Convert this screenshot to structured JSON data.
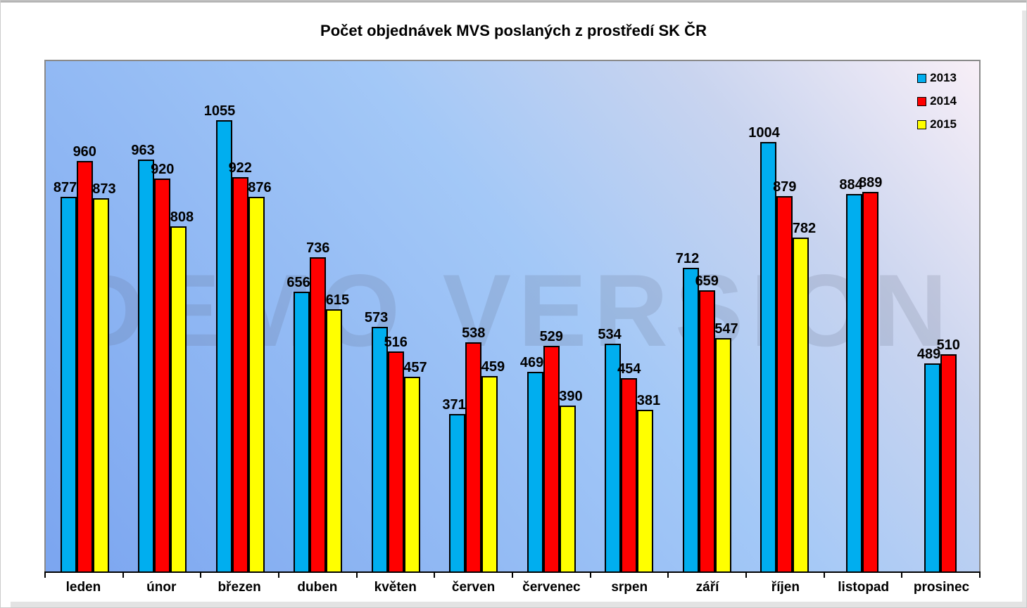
{
  "title": "Počet objednávek MVS poslaných z prostředí SK ČR",
  "watermark_text": "DEMO VERSION",
  "colors": {
    "series_2013": "#00AEEF",
    "series_2014": "#FF0000",
    "series_2015": "#FFFF00",
    "plot_bg_bottom_left": "#7BA5F0",
    "plot_bg_top_right": "#F8EFF7",
    "axis_line": "#000000",
    "plot_border": "#8A8A8A"
  },
  "legend": {
    "position": "top-right",
    "items": [
      {
        "label": "2013",
        "color": "#00AEEF"
      },
      {
        "label": "2014",
        "color": "#FF0000"
      },
      {
        "label": "2015",
        "color": "#FFFF00"
      }
    ]
  },
  "chart_data": {
    "type": "bar",
    "title": "Počet objednávek MVS poslaných z prostředí SK ČR",
    "xlabel": "",
    "ylabel": "",
    "grid": false,
    "data_labels": true,
    "legend_position": "top-right",
    "ylim": [
      0,
      1193
    ],
    "categories": [
      "leden",
      "únor",
      "březen",
      "duben",
      "květen",
      "červen",
      "červenec",
      "srpen",
      "září",
      "říjen",
      "listopad",
      "prosinec"
    ],
    "series": [
      {
        "name": "2013",
        "color": "#00AEEF",
        "label_shift": "left",
        "values": [
          877,
          963,
          1055,
          656,
          573,
          371,
          469,
          534,
          712,
          1004,
          884,
          489
        ]
      },
      {
        "name": "2014",
        "color": "#FF0000",
        "label_shift": "center",
        "values": [
          960,
          920,
          922,
          736,
          516,
          538,
          529,
          454,
          659,
          879,
          889,
          510
        ]
      },
      {
        "name": "2015",
        "color": "#FFFF00",
        "label_shift": "right",
        "values": [
          873,
          808,
          876,
          615,
          457,
          459,
          390,
          381,
          547,
          782,
          null,
          null
        ]
      }
    ]
  }
}
